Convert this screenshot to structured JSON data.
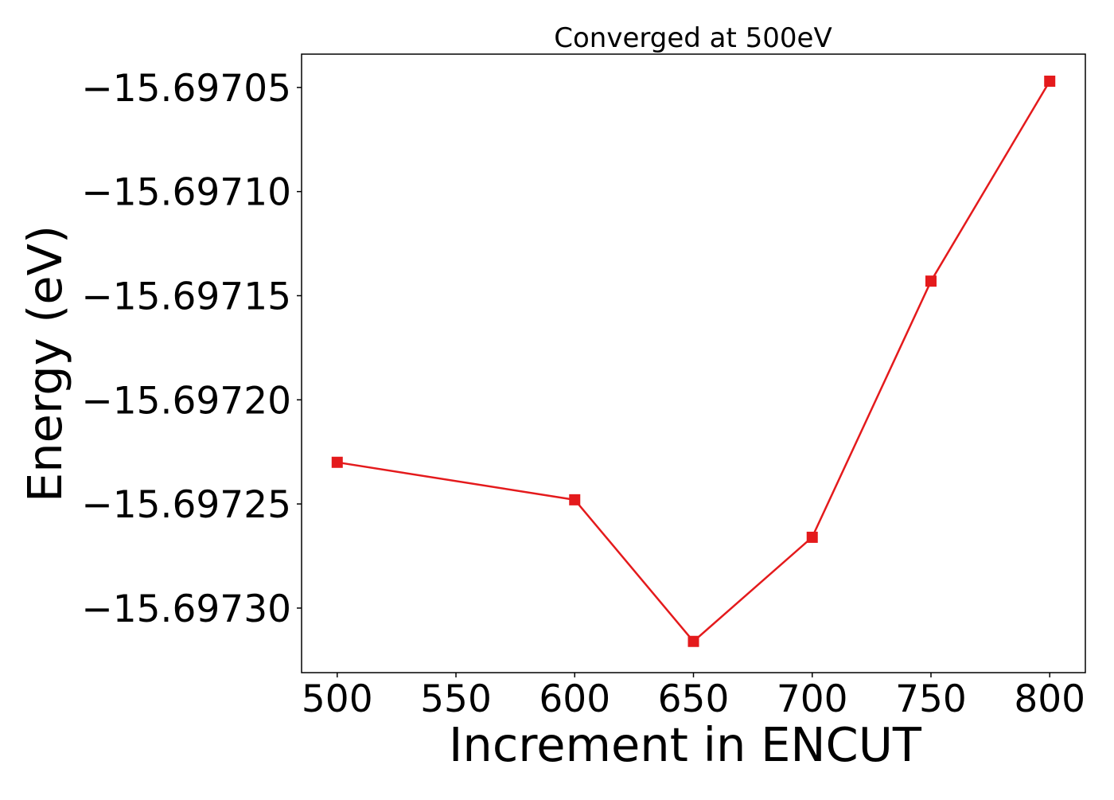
{
  "chart_data": {
    "type": "line",
    "title": "Converged at 500eV",
    "xlabel": "Increment in ENCUT",
    "ylabel": "Energy (eV)",
    "x": [
      500,
      600,
      650,
      700,
      750,
      800
    ],
    "series": [
      {
        "values": [
          -15.69723,
          -15.697248,
          -15.697316,
          -15.697266,
          -15.697143,
          -15.697047
        ]
      }
    ],
    "xticks": [
      500,
      550,
      600,
      650,
      700,
      750,
      800
    ],
    "xtick_labels": [
      "500",
      "550",
      "600",
      "650",
      "700",
      "750",
      "800"
    ],
    "yticks": [
      -15.69705,
      -15.6971,
      -15.69715,
      -15.6972,
      -15.69725,
      -15.6973
    ],
    "ytick_labels": [
      "−15.69705",
      "−15.69710",
      "−15.69715",
      "−15.69720",
      "−15.69725",
      "−15.69730"
    ],
    "xlim": [
      485,
      815
    ],
    "ylim": [
      -15.697331,
      -15.697034
    ],
    "grid": false,
    "legend": "none",
    "marker": "square",
    "colors": {
      "series": "#e41a1c",
      "axes": "#000000",
      "background": "#ffffff"
    }
  }
}
